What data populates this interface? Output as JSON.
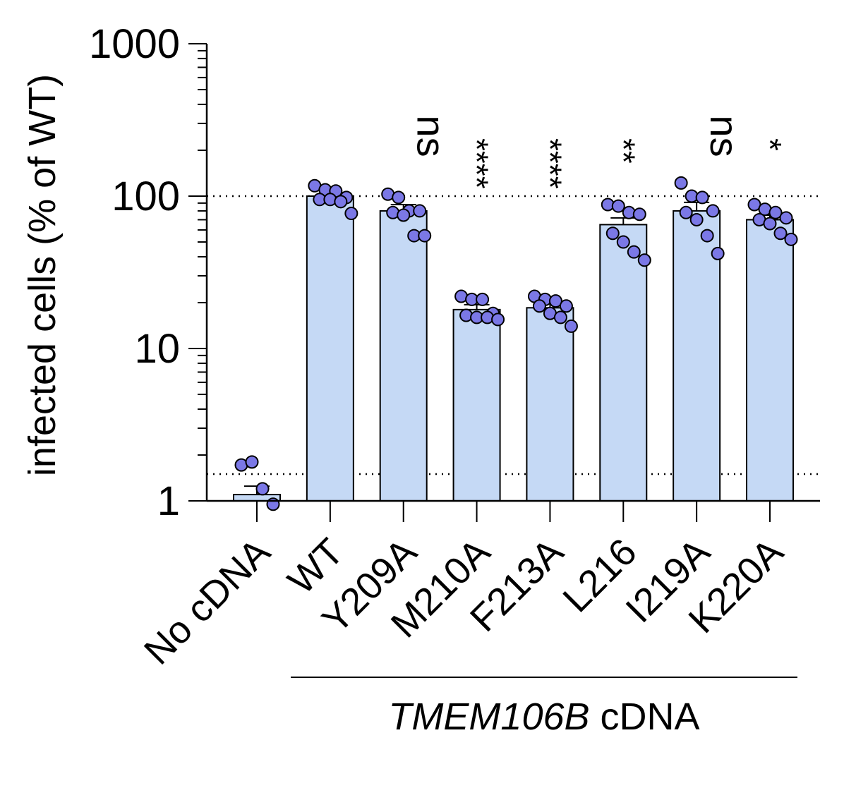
{
  "chart_data": {
    "type": "bar",
    "scale_y": "log",
    "ylim": [
      1,
      1000
    ],
    "ylabel": "infected cells (% of WT)",
    "y_ticks": [
      "1",
      "10",
      "100",
      "1000"
    ],
    "y_tick_values": [
      1,
      10,
      100,
      1000
    ],
    "reference_lines": [
      100,
      1.5
    ],
    "group_label": {
      "italic": "TMEM106B",
      "plain": " cDNA"
    },
    "categories": [
      "No cDNA",
      "WT",
      "Y209A",
      "M210A",
      "F213A",
      "L216",
      "I219A",
      "K220A"
    ],
    "series": [
      {
        "values": [
          1.1,
          100,
          80,
          18,
          18.5,
          65,
          80,
          70
        ],
        "sem": [
          0.15,
          4,
          8,
          1.4,
          1.3,
          7,
          11,
          5
        ],
        "points": [
          [
            1.72,
            1.8,
            1.2,
            0.95
          ],
          [
            117,
            110,
            108,
            98,
            95,
            95,
            92,
            77
          ],
          [
            103,
            98,
            80,
            80,
            78,
            75,
            55,
            55
          ],
          [
            22,
            21,
            21,
            17,
            16.5,
            16,
            16,
            15.5
          ],
          [
            22,
            21,
            20.5,
            19,
            19,
            17,
            16,
            14
          ],
          [
            88,
            86,
            78,
            76,
            57,
            50,
            43,
            38
          ],
          [
            122,
            100,
            98,
            80,
            78,
            70,
            55,
            42
          ],
          [
            88,
            82,
            78,
            72,
            70,
            66,
            57,
            52
          ]
        ]
      }
    ],
    "significance": [
      "",
      "",
      "ns",
      "****",
      "****",
      "**",
      "ns",
      "*"
    ],
    "bar_color": "#c5d9f5",
    "point_color": "#7b78e6",
    "edge_color": "#000000"
  }
}
